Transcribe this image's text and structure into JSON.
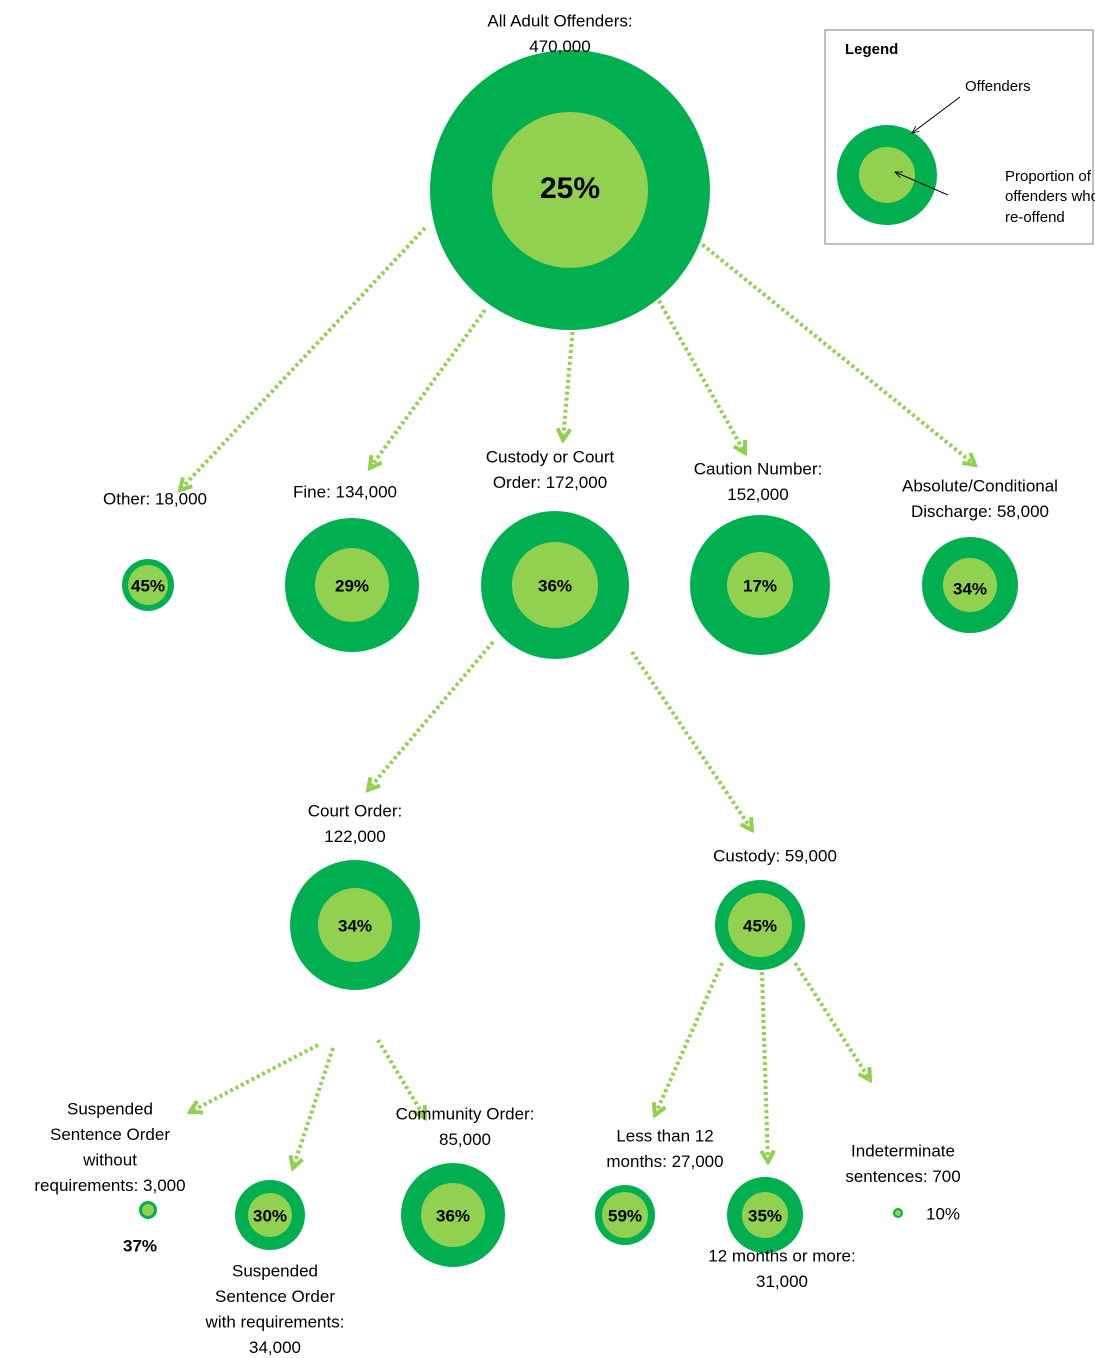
{
  "legend": {
    "title": "Legend",
    "outer": "Offenders",
    "inner": [
      "Proportion of",
      "offenders who",
      "re-offend"
    ]
  },
  "nodes": [
    {
      "label": [
        "All Adult Offenders:",
        "470,000"
      ],
      "percent": "25%"
    },
    {
      "label": [
        "Other: 18,000"
      ],
      "percent": "45%"
    },
    {
      "label": [
        "Fine: 134,000"
      ],
      "percent": "29%"
    },
    {
      "label": [
        "Custody or Court",
        "Order: 172,000"
      ],
      "percent": "36%"
    },
    {
      "label": [
        "Caution Number:",
        "152,000"
      ],
      "percent": "17%"
    },
    {
      "label": [
        "Absolute/Conditional",
        "Discharge: 58,000"
      ],
      "percent": "34%"
    },
    {
      "label": [
        "Court Order:",
        "122,000"
      ],
      "percent": "34%"
    },
    {
      "label": [
        "Custody: 59,000"
      ],
      "percent": "45%"
    },
    {
      "label": [
        "Suspended",
        "Sentence Order",
        "without",
        "requirements: 3,000"
      ],
      "percent": "37%"
    },
    {
      "label": [
        "Suspended",
        "Sentence Order",
        "with requirements:",
        "34,000"
      ],
      "percent": "30%"
    },
    {
      "label": [
        "Community Order:",
        "85,000"
      ],
      "percent": "36%"
    },
    {
      "label": [
        "Less than 12",
        "months: 27,000"
      ],
      "percent": "59%"
    },
    {
      "label": [
        "12 months or more:",
        "31,000"
      ],
      "percent": "35%"
    },
    {
      "label": [
        "Indeterminate",
        "sentences: 700"
      ],
      "percent": "10%"
    }
  ]
}
